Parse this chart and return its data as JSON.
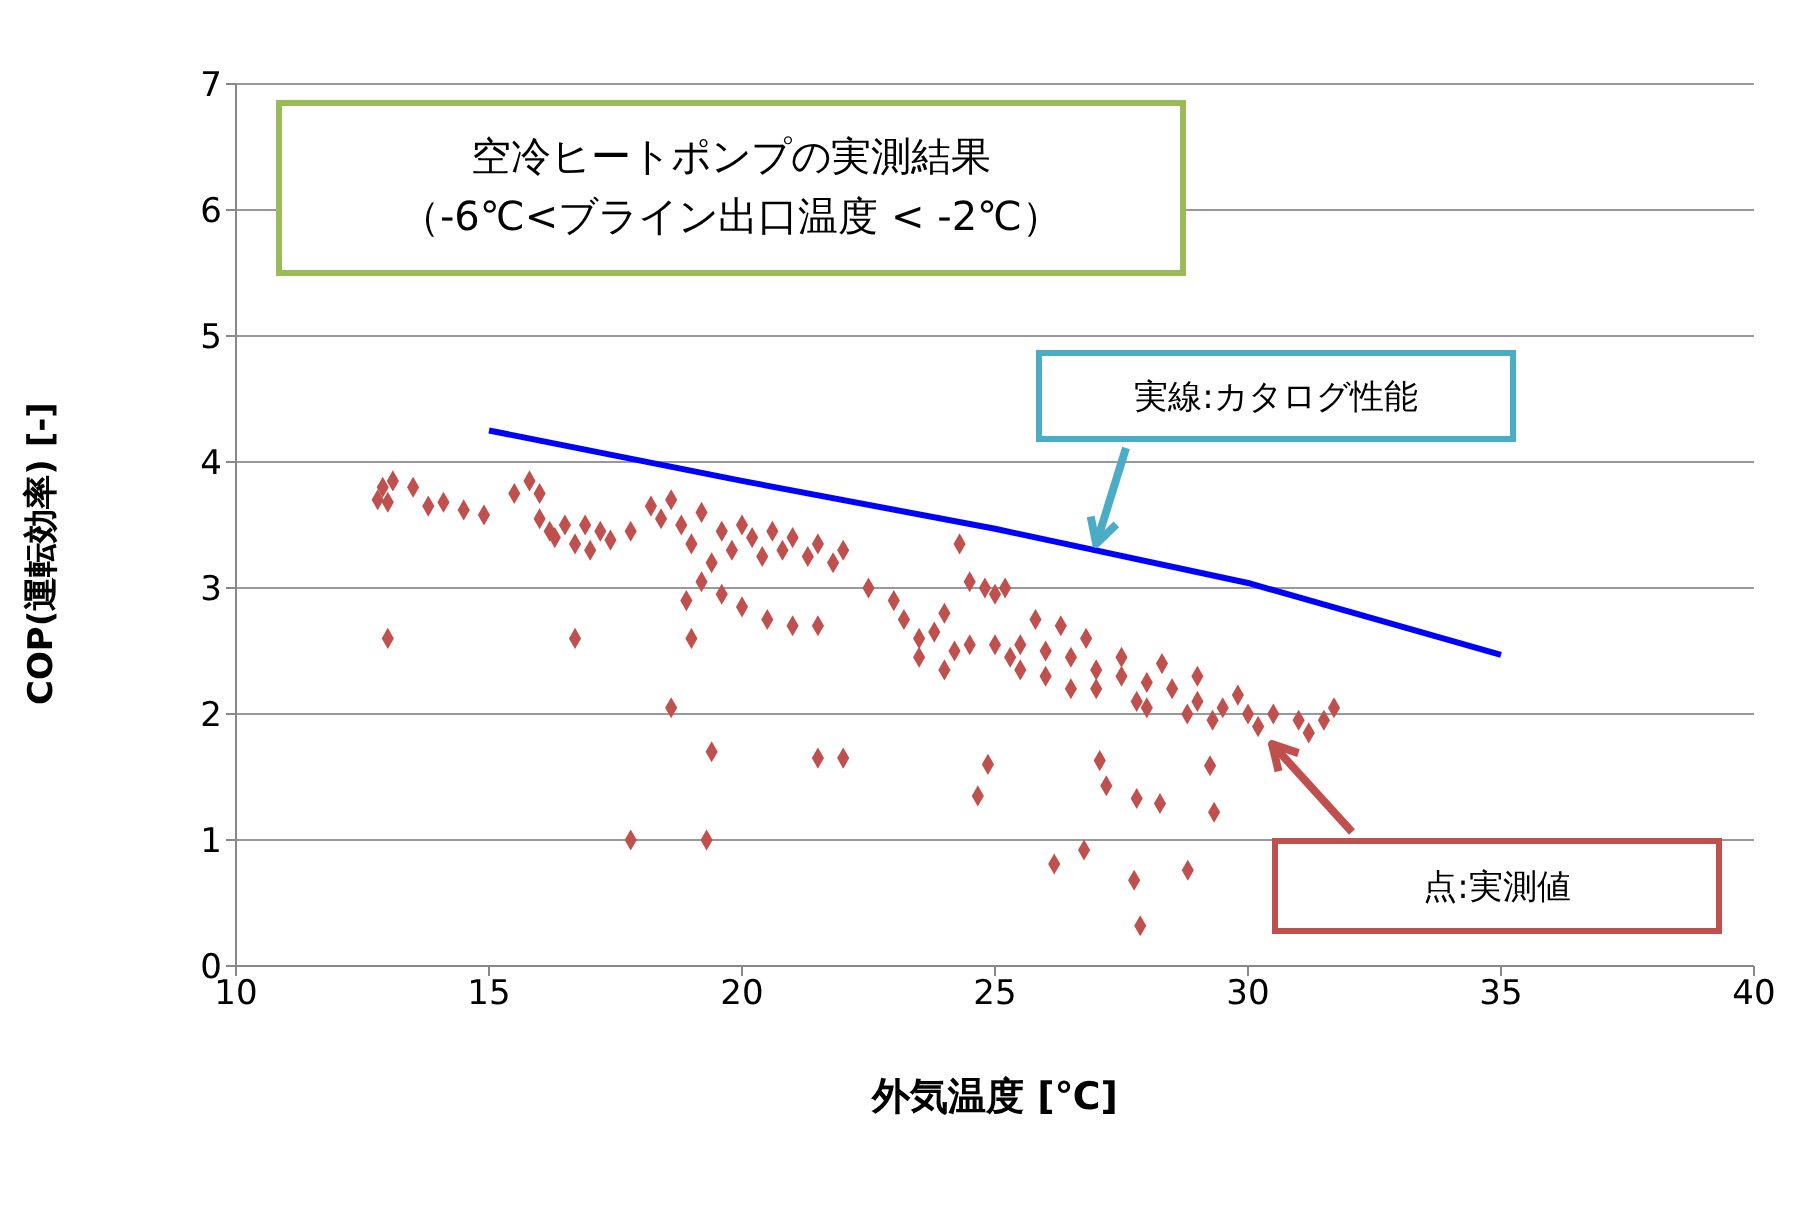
{
  "chart_data": {
    "type": "scatter",
    "title": "空冷ヒートポンプの実測結果",
    "subtitle": "（-6℃<ブライン出口温度 < -2℃）",
    "xlabel": "外気温度 [℃]",
    "ylabel": "COP(運転効率) [-]",
    "annotations": [
      {
        "text": "実線:カタログ性能",
        "x": 27,
        "y": 3.35
      },
      "点:実測値"
    ],
    "xlim": [
      10,
      40
    ],
    "xticks": [
      10,
      15,
      20,
      25,
      30,
      35,
      40
    ],
    "ylim": [
      0,
      7
    ],
    "yticks": [
      0,
      1,
      2,
      3,
      4,
      5,
      6,
      7
    ],
    "grid": "y",
    "series": [
      {
        "color": "#c0504d",
        "marker": "diamond",
        "x": [
          12.8,
          12.9,
          13.1,
          13.0,
          13.5,
          13.8,
          14.1,
          14.5,
          14.9,
          13.0,
          15.5,
          15.8,
          16.0,
          16.0,
          16.2,
          16.5,
          16.3,
          16.7,
          16.9,
          17.2,
          17.4,
          17.0,
          17.8,
          16.7,
          18.2,
          18.4,
          18.6,
          18.8,
          19.0,
          19.2,
          19.4,
          19.6,
          19.8,
          20.0,
          20.2,
          20.4,
          20.6,
          20.8,
          21.0,
          21.3,
          21.5,
          21.8,
          22.0,
          19.2,
          19.6,
          20.0,
          20.5,
          21.0,
          21.5,
          18.9,
          19.0,
          18.6,
          17.8,
          19.3,
          19.4,
          21.5,
          22.0,
          22.5,
          23.0,
          23.2,
          23.5,
          23.8,
          24.0,
          24.2,
          24.5,
          24.8,
          25.0,
          25.2,
          24.5,
          25.0,
          25.3,
          24.0,
          23.5,
          24.3,
          25.5,
          26.0,
          26.5,
          27.0,
          27.5,
          28.0,
          28.5,
          29.0,
          29.5,
          30.0,
          30.5,
          31.0,
          31.5,
          25.5,
          26.0,
          26.3,
          26.8,
          27.0,
          27.5,
          28.0,
          28.3,
          29.0,
          29.3,
          30.2,
          31.7,
          31.2,
          29.8,
          25.8,
          26.5,
          27.8,
          28.8,
          24.86,
          24.66,
          27.07,
          27.2,
          27.8,
          28.26,
          29.25,
          29.33,
          26.17,
          26.76,
          27.75,
          28.81,
          27.87
        ],
        "values": [
          3.7,
          3.8,
          3.85,
          3.68,
          3.8,
          3.65,
          3.68,
          3.62,
          3.58,
          2.6,
          3.75,
          3.85,
          3.75,
          3.55,
          3.45,
          3.5,
          3.4,
          3.35,
          3.5,
          3.45,
          3.38,
          3.3,
          3.45,
          2.6,
          3.65,
          3.55,
          3.7,
          3.5,
          3.35,
          3.6,
          3.2,
          3.45,
          3.3,
          3.5,
          3.4,
          3.25,
          3.45,
          3.3,
          3.4,
          3.25,
          3.35,
          3.2,
          3.3,
          3.05,
          2.95,
          2.85,
          2.75,
          2.7,
          2.7,
          2.9,
          2.6,
          2.05,
          1.0,
          1.0,
          1.7,
          1.65,
          1.65,
          3.0,
          2.9,
          2.75,
          2.6,
          2.65,
          2.8,
          2.5,
          3.05,
          3.0,
          2.95,
          3.0,
          2.55,
          2.55,
          2.45,
          2.35,
          2.45,
          3.35,
          2.55,
          2.5,
          2.45,
          2.35,
          2.3,
          2.25,
          2.2,
          2.1,
          2.05,
          2.0,
          2.0,
          1.95,
          1.95,
          2.35,
          2.3,
          2.7,
          2.6,
          2.2,
          2.45,
          2.05,
          2.4,
          2.3,
          1.95,
          1.9,
          2.05,
          1.85,
          2.15,
          2.75,
          2.2,
          2.1,
          2.0,
          1.6,
          1.35,
          1.63,
          1.43,
          1.33,
          1.29,
          1.59,
          1.22,
          0.81,
          0.92,
          0.68,
          0.76,
          0.32
        ]
      },
      {
        "type": "line",
        "color": "#0000ff",
        "marker": "none",
        "x": [
          15,
          20,
          25,
          30,
          35
        ],
        "values": [
          4.25,
          3.85,
          3.47,
          3.04,
          2.47
        ]
      }
    ]
  }
}
